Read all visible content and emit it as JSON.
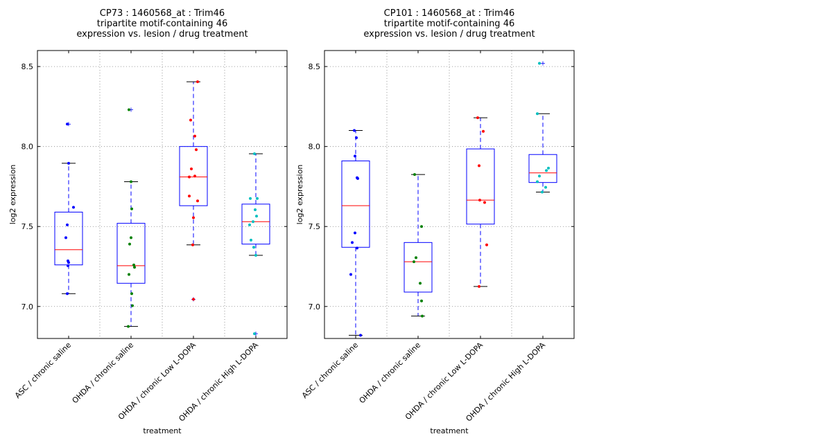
{
  "chart_data": [
    {
      "type": "boxplot",
      "title": [
        "CP73 : 1460568_at : Trim46",
        "tripartite motif-containing 46",
        "expression vs. lesion / drug treatment"
      ],
      "xlabel": "treatment",
      "ylabel": "log2 expression",
      "ylim": [
        6.8,
        8.6
      ],
      "yticks": [
        7.0,
        7.5,
        8.0,
        8.5
      ],
      "ytick_labels": [
        "7.0",
        "7.5",
        "8.0",
        "8.5"
      ],
      "grid": true,
      "categories": [
        "ASC / chronic saline",
        "OHDA / chronic saline",
        "OHDA / chronic Low L-DOPA",
        "OHDA / chronic High L-DOPA"
      ],
      "groups": [
        {
          "color": "#0000ff",
          "whisker_low": 7.08,
          "q1": 7.26,
          "median": 7.355,
          "q3": 7.59,
          "whisker_high": 7.895,
          "outliers": [
            8.14
          ],
          "points": [
            8.14,
            7.895,
            7.62,
            7.51,
            7.43,
            7.285,
            7.275,
            7.255,
            7.08
          ]
        },
        {
          "color": "#008000",
          "whisker_low": 6.875,
          "q1": 7.145,
          "median": 7.255,
          "q3": 7.52,
          "whisker_high": 7.78,
          "outliers": [
            8.23
          ],
          "points": [
            8.23,
            7.78,
            7.61,
            7.43,
            7.39,
            7.26,
            7.245,
            7.2,
            7.08,
            7.005,
            6.875
          ]
        },
        {
          "color": "#ff0000",
          "whisker_low": 7.385,
          "q1": 7.63,
          "median": 7.81,
          "q3": 8.0,
          "whisker_high": 8.405,
          "outliers": [
            7.045
          ],
          "points": [
            8.405,
            8.165,
            8.065,
            7.98,
            7.86,
            7.815,
            7.81,
            7.69,
            7.66,
            7.555,
            7.385,
            7.045
          ]
        },
        {
          "color": "#00bfbf",
          "whisker_low": 7.32,
          "q1": 7.39,
          "median": 7.53,
          "q3": 7.64,
          "whisker_high": 7.955,
          "outliers": [
            6.83
          ],
          "points": [
            7.955,
            7.675,
            7.675,
            7.605,
            7.565,
            7.53,
            7.51,
            7.415,
            7.37,
            7.32,
            6.83
          ]
        }
      ]
    },
    {
      "type": "boxplot",
      "title": [
        "CP101 : 1460568_at : Trim46",
        "tripartite motif-containing 46",
        "expression vs. lesion / drug treatment"
      ],
      "xlabel": "treatment",
      "ylabel": "log2 expression",
      "ylim": [
        6.8,
        8.6
      ],
      "yticks": [
        7.0,
        7.5,
        8.0,
        8.5
      ],
      "ytick_labels": [
        "7.0",
        "7.5",
        "8.0",
        "8.5"
      ],
      "grid": true,
      "categories": [
        "ASC / chronic saline",
        "OHDA / chronic saline",
        "OHDA / chronic Low L-DOPA",
        "OHDA / chronic High L-DOPA"
      ],
      "groups": [
        {
          "color": "#0000ff",
          "whisker_low": 6.82,
          "q1": 7.37,
          "median": 7.63,
          "q3": 7.91,
          "whisker_high": 8.1,
          "outliers": [],
          "points": [
            8.1,
            8.055,
            7.94,
            7.805,
            7.8,
            7.46,
            7.4,
            7.365,
            7.2,
            6.82
          ]
        },
        {
          "color": "#008000",
          "whisker_low": 6.94,
          "q1": 7.09,
          "median": 7.28,
          "q3": 7.4,
          "whisker_high": 7.825,
          "outliers": [],
          "points": [
            7.825,
            7.5,
            7.305,
            7.28,
            7.145,
            7.035,
            6.94
          ]
        },
        {
          "color": "#ff0000",
          "whisker_low": 7.125,
          "q1": 7.515,
          "median": 7.665,
          "q3": 7.985,
          "whisker_high": 8.18,
          "outliers": [],
          "points": [
            8.18,
            8.095,
            7.88,
            7.665,
            7.65,
            7.385,
            7.125
          ]
        },
        {
          "color": "#00bfbf",
          "whisker_low": 7.715,
          "q1": 7.775,
          "median": 7.835,
          "q3": 7.95,
          "whisker_high": 8.205,
          "outliers": [
            8.52
          ],
          "points": [
            8.52,
            8.205,
            7.865,
            7.85,
            7.815,
            7.78,
            7.745,
            7.715
          ]
        }
      ]
    }
  ]
}
